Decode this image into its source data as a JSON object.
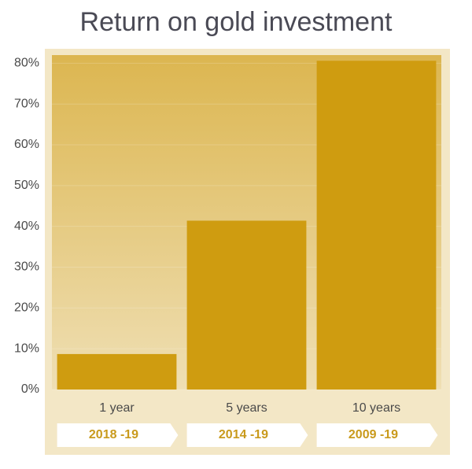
{
  "chart_data": {
    "type": "bar",
    "title": "Return on gold investment",
    "categories": [
      "1 year",
      "5 years",
      "10 years"
    ],
    "periods": [
      "2018 -19",
      "2014 -19",
      "2009 -19"
    ],
    "values": [
      8.7,
      41.4,
      80.6
    ],
    "color": "#cf9c10",
    "ylim": [
      0,
      82
    ],
    "yticks": [
      {
        "value": 0,
        "label": "0%"
      },
      {
        "value": 10,
        "label": "10%"
      },
      {
        "value": 20,
        "label": "20%"
      },
      {
        "value": 30,
        "label": "30%"
      },
      {
        "value": 40,
        "label": "40%"
      },
      {
        "value": 50,
        "label": "50%"
      },
      {
        "value": 60,
        "label": "60%"
      },
      {
        "value": 70,
        "label": "70%"
      },
      {
        "value": 80,
        "label": "80%"
      }
    ],
    "grid": true
  }
}
